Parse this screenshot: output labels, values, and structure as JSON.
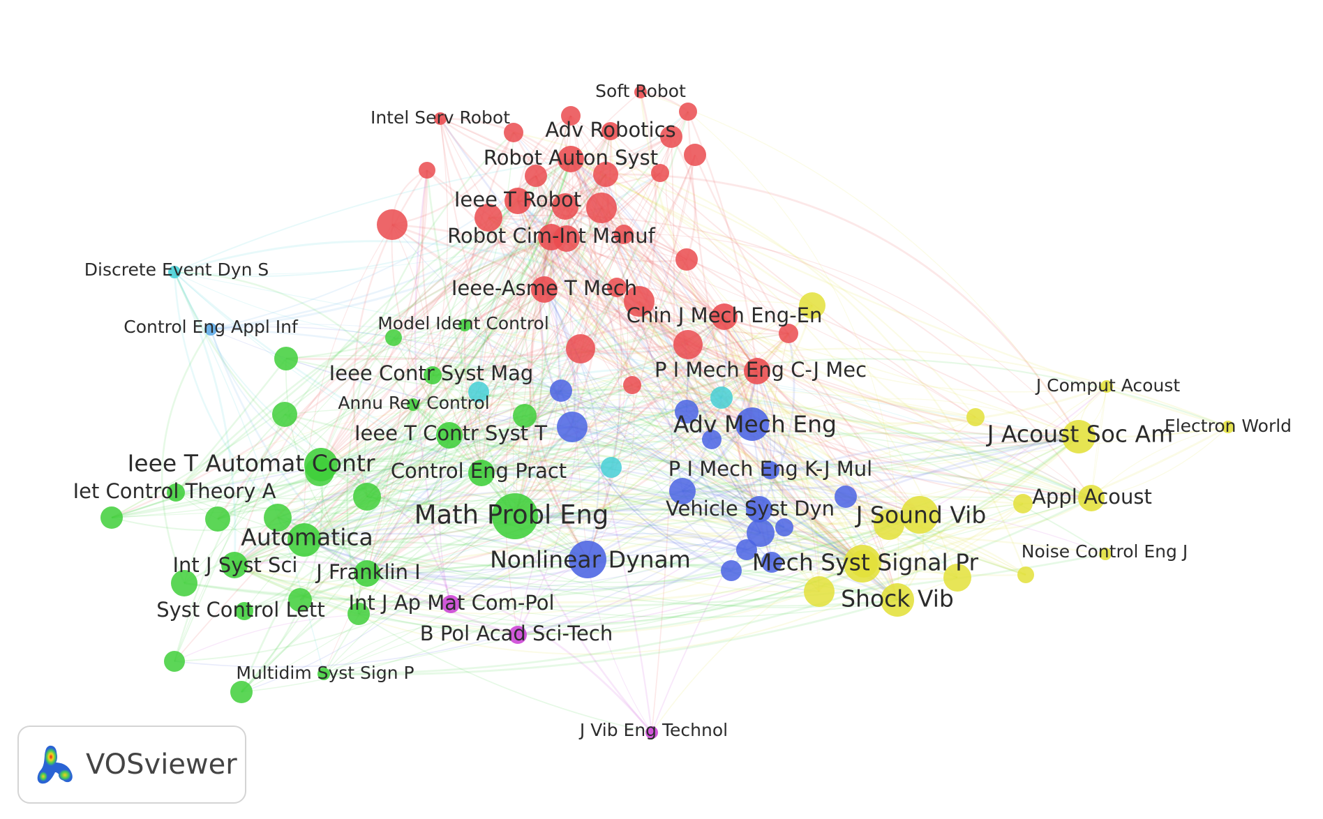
{
  "clusters": {
    "red": "#ea4b4f",
    "green": "#3fcf3a",
    "blue": "#4a63e3",
    "yellow": "#e3e03a",
    "purple": "#cc42d6",
    "cyan": "#46cfd6",
    "skyblue": "#5aa9e6"
  },
  "nodes": [
    {
      "label": "Soft Robot",
      "cluster": "red",
      "w": 1
    },
    {
      "label": "Intel Serv Robot",
      "cluster": "red",
      "w": 1
    },
    {
      "label": "Adv Robotics",
      "cluster": "red",
      "w": 2
    },
    {
      "label": "Robot Auton Syst",
      "cluster": "red",
      "w": 3
    },
    {
      "label": "Ieee T Robot",
      "cluster": "red",
      "w": 3
    },
    {
      "label": "Robot Cim-Int Manuf",
      "cluster": "red",
      "w": 3
    },
    {
      "label": "Ieee-Asme T Mech",
      "cluster": "red",
      "w": 3
    },
    {
      "label": "Chin J Mech Eng-En",
      "cluster": "red",
      "w": 3
    },
    {
      "label": "P I Mech Eng C-J Mec",
      "cluster": "red",
      "w": 3
    },
    {
      "label": "Discrete Event Dyn S",
      "cluster": "cyan",
      "w": 1
    },
    {
      "label": "Control Eng Appl Inf",
      "cluster": "skyblue",
      "w": 1
    },
    {
      "label": "Model Ident Control",
      "cluster": "green",
      "w": 1
    },
    {
      "label": "Ieee Contr Syst Mag",
      "cluster": "green",
      "w": 2
    },
    {
      "label": "Annu Rev Control",
      "cluster": "green",
      "w": 1
    },
    {
      "label": "Ieee T Contr Syst T",
      "cluster": "green",
      "w": 3
    },
    {
      "label": "Ieee T Automat Contr",
      "cluster": "green",
      "w": 4
    },
    {
      "label": "Control Eng Pract",
      "cluster": "green",
      "w": 3
    },
    {
      "label": "Iet Control Theory A",
      "cluster": "green",
      "w": 2
    },
    {
      "label": "Math Probl Eng",
      "cluster": "green",
      "w": 6
    },
    {
      "label": "Automatica",
      "cluster": "green",
      "w": 4
    },
    {
      "label": "Int J Syst Sci",
      "cluster": "green",
      "w": 3
    },
    {
      "label": "J Franklin I",
      "cluster": "green",
      "w": 3
    },
    {
      "label": "Syst Control Lett",
      "cluster": "green",
      "w": 2
    },
    {
      "label": "Multidim Syst Sign P",
      "cluster": "green",
      "w": 1
    },
    {
      "label": "Int J Ap Mat Com-Pol",
      "cluster": "purple",
      "w": 2
    },
    {
      "label": "B Pol Acad Sci-Tech",
      "cluster": "purple",
      "w": 2
    },
    {
      "label": "J Vib Eng Technol",
      "cluster": "purple",
      "w": 1
    },
    {
      "label": "Adv Mech Eng",
      "cluster": "blue",
      "w": 4
    },
    {
      "label": "P I Mech Eng K-J Mul",
      "cluster": "blue",
      "w": 2
    },
    {
      "label": "Vehicle Syst Dyn",
      "cluster": "blue",
      "w": 3
    },
    {
      "label": "Nonlinear Dynam",
      "cluster": "blue",
      "w": 5
    },
    {
      "label": "Mech Syst Signal Pr",
      "cluster": "yellow",
      "w": 5
    },
    {
      "label": "J Sound Vib",
      "cluster": "yellow",
      "w": 5
    },
    {
      "label": "Shock Vib",
      "cluster": "yellow",
      "w": 4
    },
    {
      "label": "J Comput Acoust",
      "cluster": "yellow",
      "w": 1
    },
    {
      "label": "J Acoust Soc Am",
      "cluster": "yellow",
      "w": 4
    },
    {
      "label": "Electron World",
      "cluster": "yellow",
      "w": 1
    },
    {
      "label": "Appl Acoust",
      "cluster": "yellow",
      "w": 3
    },
    {
      "label": "Noise Control Eng J",
      "cluster": "yellow",
      "w": 1
    }
  ],
  "logo": {
    "icon": "vosviewer-logo-icon",
    "text": "VOSviewer"
  }
}
